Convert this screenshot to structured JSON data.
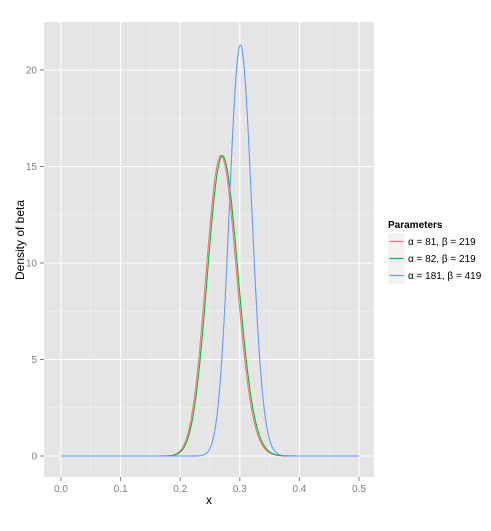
{
  "chart_data": {
    "type": "line",
    "xlabel": "x",
    "ylabel": "Density of beta",
    "xlim": [
      0.0,
      0.5
    ],
    "ylim": [
      0,
      21.3
    ],
    "xticks": [
      "0.0",
      "0.1",
      "0.2",
      "0.3",
      "0.4",
      "0.5"
    ],
    "yticks": [
      "0",
      "5",
      "10",
      "15",
      "20"
    ],
    "grid": true,
    "legend": {
      "title": "Parameters",
      "position": "right"
    },
    "series": [
      {
        "name": "α = 81, β = 219",
        "alpha": 81,
        "beta": 219,
        "color": "#f8766d"
      },
      {
        "name": "α = 82, β = 219",
        "alpha": 82,
        "beta": 219,
        "color": "#00ba38"
      },
      {
        "name": "α = 181, β = 419",
        "alpha": 181,
        "beta": 419,
        "color": "#619cff"
      }
    ]
  }
}
